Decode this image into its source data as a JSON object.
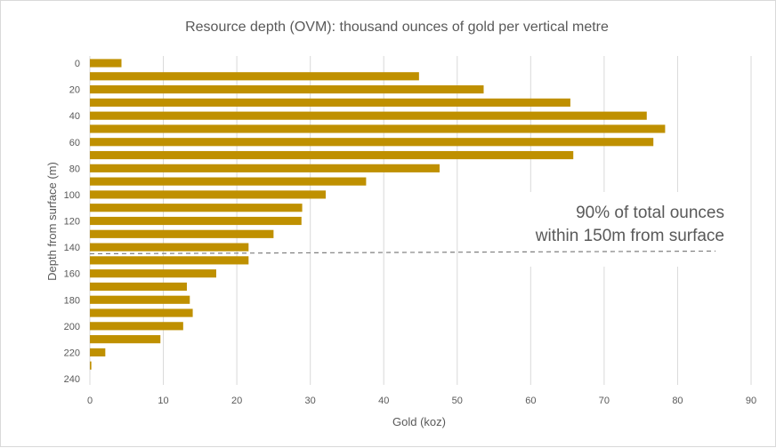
{
  "chart_data": {
    "type": "bar",
    "orientation": "horizontal",
    "title": "Resource depth (OVM): thousand ounces of gold per vertical metre",
    "xlabel": "Gold (koz)",
    "ylabel": "Depth from surface (m)",
    "xlim": [
      0,
      90
    ],
    "x_ticks": [
      0,
      10,
      20,
      30,
      40,
      50,
      60,
      70,
      80,
      90
    ],
    "ylim": [
      0,
      240
    ],
    "y_ticks": [
      0,
      20,
      40,
      60,
      80,
      100,
      120,
      140,
      160,
      180,
      200,
      220,
      240
    ],
    "grid": "vertical",
    "bar_color": "#BF9000",
    "categories": [
      0,
      10,
      20,
      30,
      40,
      50,
      60,
      70,
      80,
      90,
      100,
      110,
      120,
      130,
      140,
      150,
      160,
      170,
      180,
      190,
      200,
      210,
      220,
      230
    ],
    "values": [
      4.3,
      44.8,
      53.6,
      65.4,
      75.8,
      78.3,
      76.7,
      65.8,
      47.6,
      37.6,
      32.1,
      28.9,
      28.8,
      25.0,
      21.6,
      21.6,
      17.2,
      13.2,
      13.6,
      14.0,
      12.7,
      9.6,
      2.1,
      0.2
    ],
    "annotation": {
      "lines": [
        "90% of total ounces",
        "within 150m from surface"
      ],
      "reference_depth": 145,
      "line_style": "dashed"
    }
  }
}
